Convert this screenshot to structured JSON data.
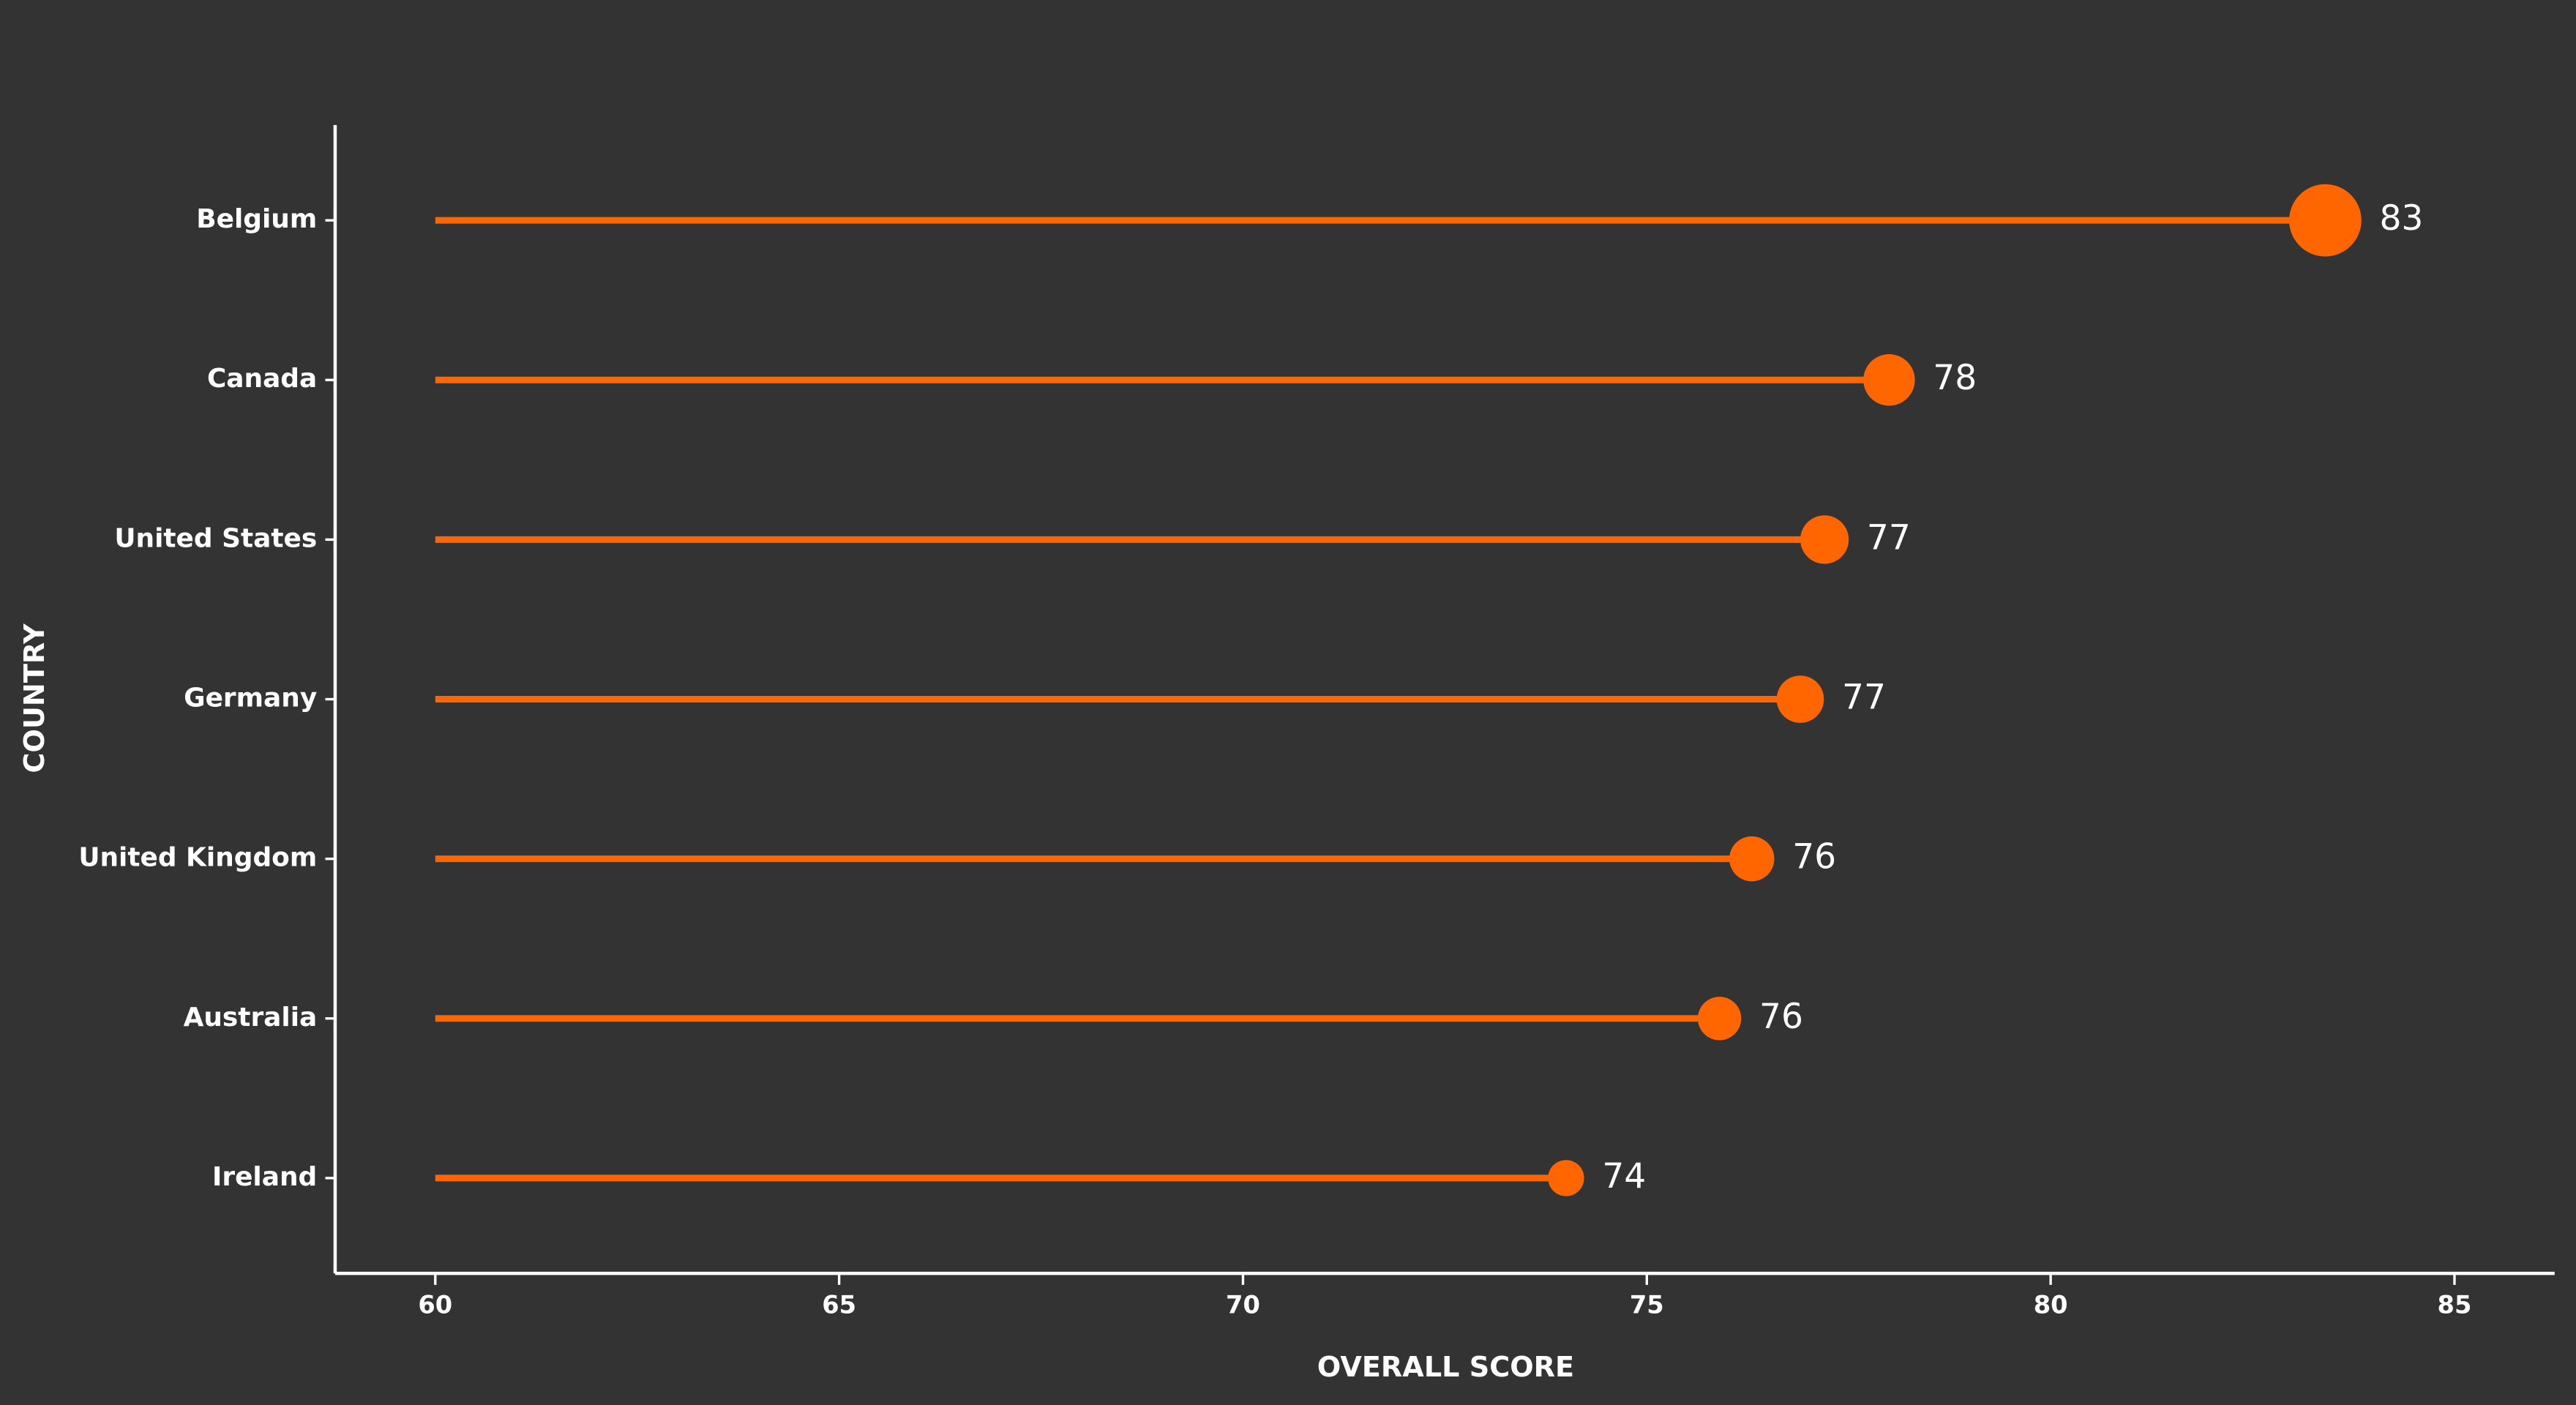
{
  "chart_data": {
    "type": "lollipop",
    "x_label": "OVERALL SCORE",
    "y_label": "COUNTRY",
    "categories": [
      "Belgium",
      "Canada",
      "United States",
      "Germany",
      "United Kingdom",
      "Australia",
      "Ireland"
    ],
    "values": [
      83.4,
      78.0,
      77.2,
      76.9,
      76.3,
      75.9,
      74.0
    ],
    "value_labels": [
      "83",
      "78",
      "77",
      "77",
      "76",
      "76",
      "74"
    ],
    "color": "#ff6600",
    "xlim": [
      58.76,
      86.24
    ],
    "xticks": [
      60,
      65,
      70,
      75,
      80,
      85
    ]
  }
}
